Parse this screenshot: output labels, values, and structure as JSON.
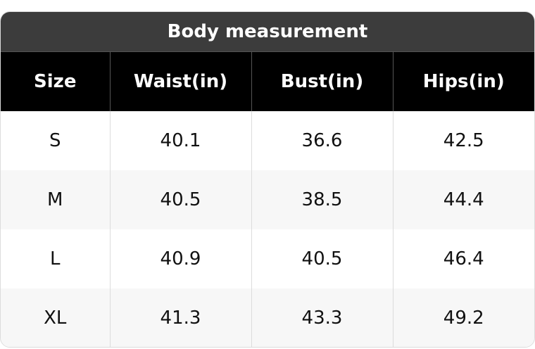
{
  "header": {
    "title": "Body measurement"
  },
  "table": {
    "columns": [
      "Size",
      "Waist(in)",
      "Bust(in)",
      "Hips(in)"
    ],
    "rows": [
      [
        "S",
        40.1,
        36.6,
        42.5
      ],
      [
        "M",
        40.5,
        38.5,
        44.4
      ],
      [
        "L",
        40.9,
        40.5,
        46.4
      ],
      [
        "XL",
        41.3,
        43.3,
        49.2
      ]
    ]
  }
}
